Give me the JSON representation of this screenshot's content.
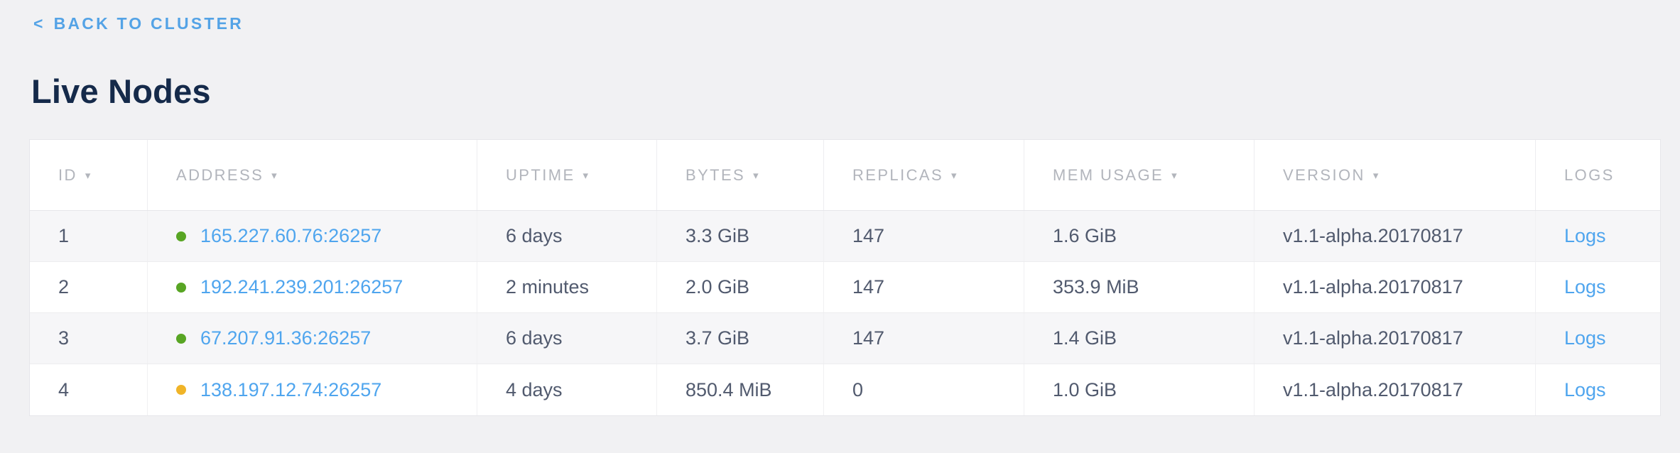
{
  "back_link": {
    "arrow": "<",
    "label": "BACK TO CLUSTER"
  },
  "title": "Live Nodes",
  "colors": {
    "accent_link": "#4fa5ee",
    "back_link": "#54a3e6",
    "title": "#152a4a",
    "header_text": "#b2b5bc",
    "body_text": "#515a6e",
    "status_healthy": "#58a524",
    "status_warning": "#f0b428",
    "row_stripe": "#f6f6f8",
    "page_background": "#f1f1f3"
  },
  "table": {
    "sort_arrow": "▾",
    "columns": [
      {
        "key": "id",
        "label": "ID",
        "sortable": true
      },
      {
        "key": "address",
        "label": "ADDRESS",
        "sortable": true
      },
      {
        "key": "uptime",
        "label": "UPTIME",
        "sortable": true
      },
      {
        "key": "bytes",
        "label": "BYTES",
        "sortable": true
      },
      {
        "key": "replicas",
        "label": "REPLICAS",
        "sortable": true
      },
      {
        "key": "mem_usage",
        "label": "MEM USAGE",
        "sortable": true
      },
      {
        "key": "version",
        "label": "VERSION",
        "sortable": true
      },
      {
        "key": "logs",
        "label": "LOGS",
        "sortable": false
      }
    ],
    "rows": [
      {
        "id": "1",
        "status": "healthy",
        "status_color": "#58a524",
        "address": "165.227.60.76:26257",
        "uptime": "6 days",
        "bytes": "3.3 GiB",
        "replicas": "147",
        "mem_usage": "1.6 GiB",
        "version": "v1.1-alpha.20170817",
        "logs_label": "Logs"
      },
      {
        "id": "2",
        "status": "healthy",
        "status_color": "#58a524",
        "address": "192.241.239.201:26257",
        "uptime": "2 minutes",
        "bytes": "2.0 GiB",
        "replicas": "147",
        "mem_usage": "353.9 MiB",
        "version": "v1.1-alpha.20170817",
        "logs_label": "Logs"
      },
      {
        "id": "3",
        "status": "healthy",
        "status_color": "#58a524",
        "address": "67.207.91.36:26257",
        "uptime": "6 days",
        "bytes": "3.7 GiB",
        "replicas": "147",
        "mem_usage": "1.4 GiB",
        "version": "v1.1-alpha.20170817",
        "logs_label": "Logs"
      },
      {
        "id": "4",
        "status": "warning",
        "status_color": "#f0b428",
        "address": "138.197.12.74:26257",
        "uptime": "4 days",
        "bytes": "850.4 MiB",
        "replicas": "0",
        "mem_usage": "1.0 GiB",
        "version": "v1.1-alpha.20170817",
        "logs_label": "Logs"
      }
    ]
  }
}
